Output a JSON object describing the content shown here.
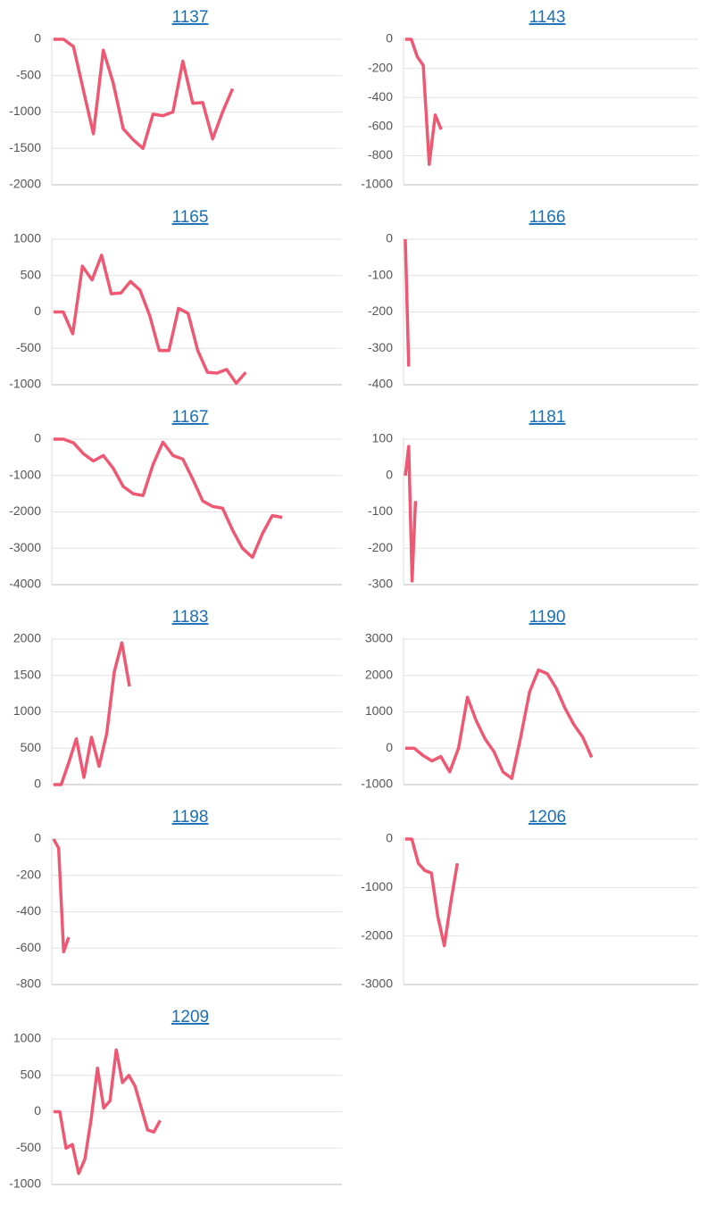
{
  "chart_data": [
    {
      "type": "line",
      "title": "1137",
      "color": "#ee5873",
      "ylim": [
        -2000,
        0
      ],
      "yticks": [
        0,
        -500,
        -1000,
        -1500,
        -2000
      ],
      "values": [
        0,
        0,
        -100,
        -700,
        -1300,
        -150,
        -600,
        -1230,
        -1380,
        -1500,
        -1030,
        -1050,
        -1000,
        -300,
        -880,
        -870,
        -1370,
        -1000,
        -680,
        null,
        null,
        null,
        null,
        null,
        null,
        null,
        null,
        null,
        null,
        null
      ]
    },
    {
      "type": "line",
      "title": "1143",
      "color": "#ee5873",
      "ylim": [
        -1000,
        0
      ],
      "yticks": [
        0,
        -200,
        -400,
        -600,
        -800,
        -1000
      ],
      "values": [
        0,
        0,
        -120,
        -180,
        -860,
        -520,
        -620,
        null,
        null,
        null,
        null,
        null,
        null,
        null,
        null,
        null,
        null,
        null,
        null,
        null,
        null,
        null,
        null,
        null,
        null,
        null,
        null,
        null,
        null,
        null,
        null,
        null,
        null,
        null,
        null,
        null,
        null,
        null,
        null,
        null,
        null,
        null,
        null,
        null,
        null,
        null,
        null,
        null,
        null,
        null
      ]
    },
    {
      "type": "line",
      "title": "1165",
      "color": "#ee5873",
      "ylim": [
        -1000,
        1000
      ],
      "yticks": [
        1000,
        500,
        0,
        -500,
        -1000
      ],
      "values": [
        0,
        0,
        -300,
        630,
        440,
        780,
        250,
        260,
        420,
        300,
        -50,
        -530,
        -530,
        50,
        -20,
        -530,
        -830,
        -840,
        -790,
        -980,
        -830,
        null,
        null,
        null,
        null,
        null,
        null,
        null,
        null,
        null,
        null
      ]
    },
    {
      "type": "line",
      "title": "1166",
      "color": "#ee5873",
      "ylim": [
        -400,
        0
      ],
      "yticks": [
        0,
        -100,
        -200,
        -300,
        -400
      ],
      "values": [
        0,
        -350,
        null,
        null,
        null,
        null,
        null,
        null,
        null,
        null,
        null,
        null,
        null,
        null,
        null,
        null,
        null,
        null,
        null,
        null,
        null,
        null,
        null,
        null,
        null,
        null,
        null,
        null,
        null,
        null,
        null,
        null,
        null,
        null,
        null,
        null,
        null,
        null,
        null,
        null,
        null,
        null,
        null,
        null,
        null,
        null,
        null,
        null,
        null,
        null,
        null,
        null,
        null,
        null,
        null,
        null,
        null,
        null,
        null,
        null,
        null,
        null,
        null,
        null,
        null,
        null,
        null,
        null,
        null,
        null,
        null,
        null,
        null,
        null,
        null,
        null,
        null,
        null,
        null,
        null,
        null,
        null,
        null,
        null,
        null,
        null,
        null
      ]
    },
    {
      "type": "line",
      "title": "1167",
      "color": "#ee5873",
      "ylim": [
        -4000,
        0
      ],
      "yticks": [
        0,
        -1000,
        -2000,
        -3000,
        -4000
      ],
      "values": [
        0,
        0,
        -100,
        -400,
        -600,
        -450,
        -800,
        -1300,
        -1500,
        -1550,
        -700,
        -80,
        -450,
        -550,
        -1100,
        -1700,
        -1850,
        -1900,
        -2500,
        -3000,
        -3250,
        -2600,
        -2100,
        -2150,
        null,
        null,
        null,
        null,
        null,
        null
      ]
    },
    {
      "type": "line",
      "title": "1181",
      "color": "#ee5873",
      "ylim": [
        -300,
        100
      ],
      "yticks": [
        100,
        0,
        -100,
        -200,
        -300
      ],
      "values": [
        0,
        80,
        -290,
        -70,
        null,
        null,
        null,
        null,
        null,
        null,
        null,
        null,
        null,
        null,
        null,
        null,
        null,
        null,
        null,
        null,
        null,
        null,
        null,
        null,
        null,
        null,
        null,
        null,
        null,
        null,
        null,
        null,
        null,
        null,
        null,
        null,
        null,
        null,
        null,
        null,
        null,
        null,
        null,
        null,
        null,
        null,
        null,
        null,
        null,
        null,
        null,
        null,
        null,
        null,
        null,
        null,
        null,
        null,
        null,
        null,
        null,
        null,
        null,
        null,
        null,
        null,
        null,
        null,
        null,
        null,
        null,
        null,
        null,
        null,
        null,
        null,
        null,
        null,
        null,
        null,
        null,
        null,
        null,
        null,
        null,
        null,
        null
      ]
    },
    {
      "type": "line",
      "title": "1183",
      "color": "#ee5873",
      "ylim": [
        0,
        2000
      ],
      "yticks": [
        2000,
        1500,
        1000,
        500,
        0
      ],
      "values": [
        0,
        0,
        300,
        630,
        100,
        650,
        250,
        700,
        1550,
        1950,
        1350,
        null,
        null,
        null,
        null,
        null,
        null,
        null,
        null,
        null,
        null,
        null,
        null,
        null,
        null,
        null,
        null,
        null,
        null,
        null,
        null,
        null,
        null,
        null,
        null,
        null,
        null,
        null,
        null
      ]
    },
    {
      "type": "line",
      "title": "1190",
      "color": "#ee5873",
      "ylim": [
        -1000,
        3000
      ],
      "yticks": [
        3000,
        2000,
        1000,
        0,
        -1000
      ],
      "values": [
        0,
        0,
        -200,
        -350,
        -230,
        -650,
        0,
        1400,
        750,
        250,
        -100,
        -650,
        -830,
        300,
        1550,
        2150,
        2050,
        1650,
        1100,
        650,
        300,
        -250,
        null,
        null,
        null,
        null,
        null,
        null,
        null,
        null,
        null,
        null,
        null,
        null
      ]
    },
    {
      "type": "line",
      "title": "1198",
      "color": "#ee5873",
      "ylim": [
        -800,
        0
      ],
      "yticks": [
        0,
        -200,
        -400,
        -600,
        -800
      ],
      "values": [
        0,
        -50,
        -620,
        -540,
        null,
        null,
        null,
        null,
        null,
        null,
        null,
        null,
        null,
        null,
        null,
        null,
        null,
        null,
        null,
        null,
        null,
        null,
        null,
        null,
        null,
        null,
        null,
        null,
        null,
        null,
        null,
        null,
        null,
        null,
        null,
        null,
        null,
        null,
        null,
        null,
        null,
        null,
        null,
        null,
        null,
        null,
        null,
        null,
        null,
        null,
        null,
        null,
        null,
        null,
        null,
        null,
        null,
        null
      ]
    },
    {
      "type": "line",
      "title": "1206",
      "color": "#ee5873",
      "ylim": [
        -3000,
        0
      ],
      "yticks": [
        0,
        -1000,
        -2000,
        -3000
      ],
      "values": [
        0,
        0,
        -500,
        -650,
        -700,
        -1600,
        -2200,
        -1300,
        -500,
        null,
        null,
        null,
        null,
        null,
        null,
        null,
        null,
        null,
        null,
        null,
        null,
        null,
        null,
        null,
        null,
        null,
        null,
        null,
        null,
        null,
        null,
        null,
        null,
        null,
        null,
        null,
        null,
        null,
        null,
        null,
        null,
        null,
        null,
        null,
        null,
        null
      ]
    },
    {
      "type": "line",
      "title": "1209",
      "color": "#ee5873",
      "ylim": [
        -1000,
        1000
      ],
      "yticks": [
        1000,
        500,
        0,
        -500,
        -1000
      ],
      "values": [
        0,
        0,
        -500,
        -450,
        -850,
        -650,
        -100,
        600,
        50,
        150,
        850,
        400,
        500,
        350,
        50,
        -250,
        -280,
        -120,
        null,
        null,
        null,
        null,
        null,
        null,
        null,
        null,
        null,
        null,
        null,
        null,
        null,
        null,
        null,
        null,
        null,
        null,
        null,
        null,
        null,
        null,
        null,
        null,
        null,
        null,
        null,
        null,
        null
      ]
    }
  ]
}
